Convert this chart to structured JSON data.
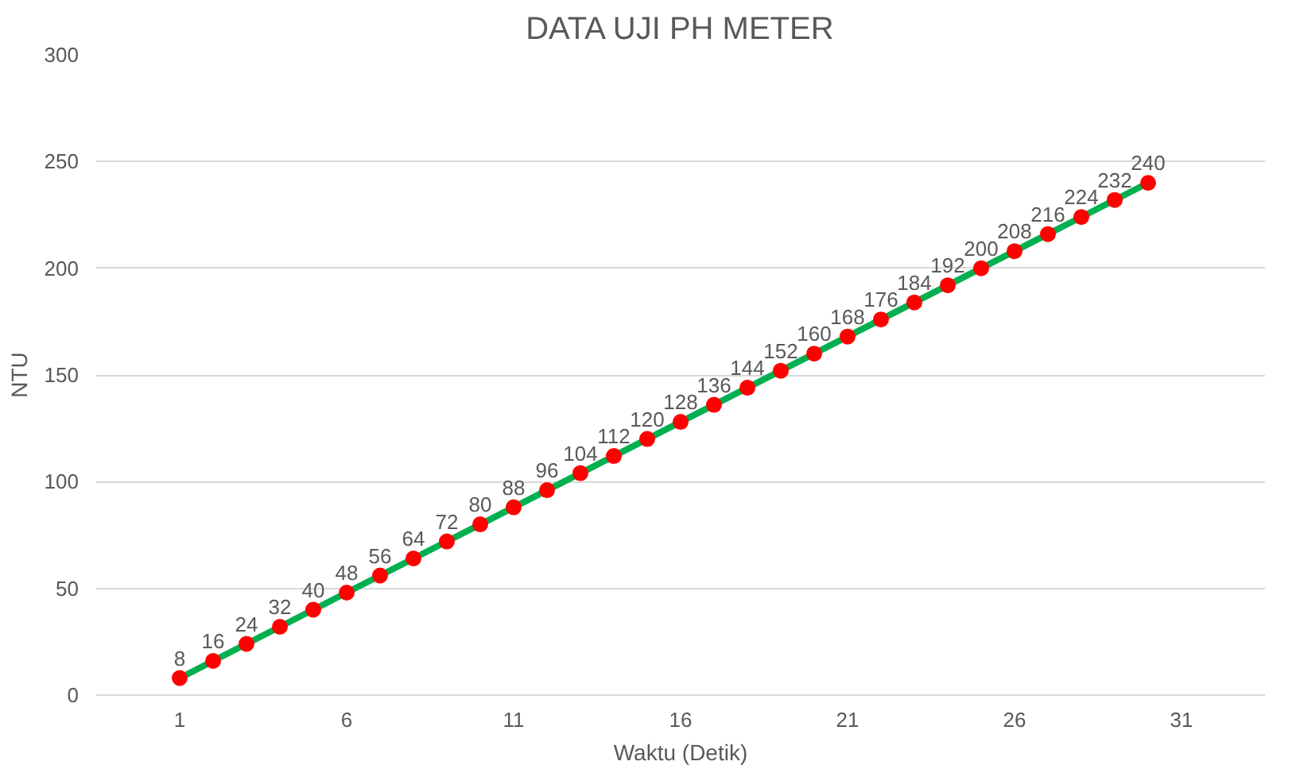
{
  "chart_data": {
    "type": "line",
    "title": "DATA UJI PH METER",
    "xlabel": "Waktu (Detik)",
    "ylabel": "NTU",
    "x": [
      1,
      2,
      3,
      4,
      5,
      6,
      7,
      8,
      9,
      10,
      11,
      12,
      13,
      14,
      15,
      16,
      17,
      18,
      19,
      20,
      21,
      22,
      23,
      24,
      25,
      26,
      27,
      28,
      29,
      30
    ],
    "series": [
      {
        "color": "#00b050",
        "values": [
          8,
          16,
          24,
          32,
          40,
          48,
          56,
          64,
          72,
          80,
          88,
          96,
          104,
          112,
          120,
          128,
          136,
          144,
          152,
          160,
          168,
          176,
          184,
          192,
          200,
          208,
          216,
          224,
          232,
          240
        ],
        "colors": [
          "#ff0000",
          "#ff0000",
          "#ff0000",
          "#ff0000",
          "#ff0000",
          "#ff0000",
          "#ff0000",
          "#ff0000",
          "#ff0000",
          "#ff0000",
          "#ff0000",
          "#ff0000",
          "#ff0000",
          "#ff0000",
          "#ff0000",
          "#ff0000",
          "#ff0000",
          "#ff0000",
          "#ff0000",
          "#ff0000",
          "#ff0000",
          "#ff0000",
          "#ff0000",
          "#ff0000",
          "#ff0000",
          "#ff0000",
          "#ff0000",
          "#ff0000",
          "#ff0000",
          "#ff0000"
        ]
      }
    ],
    "xlim": [
      -1.5,
      33.5
    ],
    "xticks": [
      1,
      6,
      11,
      16,
      21,
      26,
      31
    ],
    "ylim": [
      0,
      300
    ],
    "yticks": [
      0,
      50,
      100,
      150,
      200,
      250,
      300
    ],
    "grid": "y",
    "marker": "circle",
    "line_style": "solid",
    "data_labels": true
  }
}
